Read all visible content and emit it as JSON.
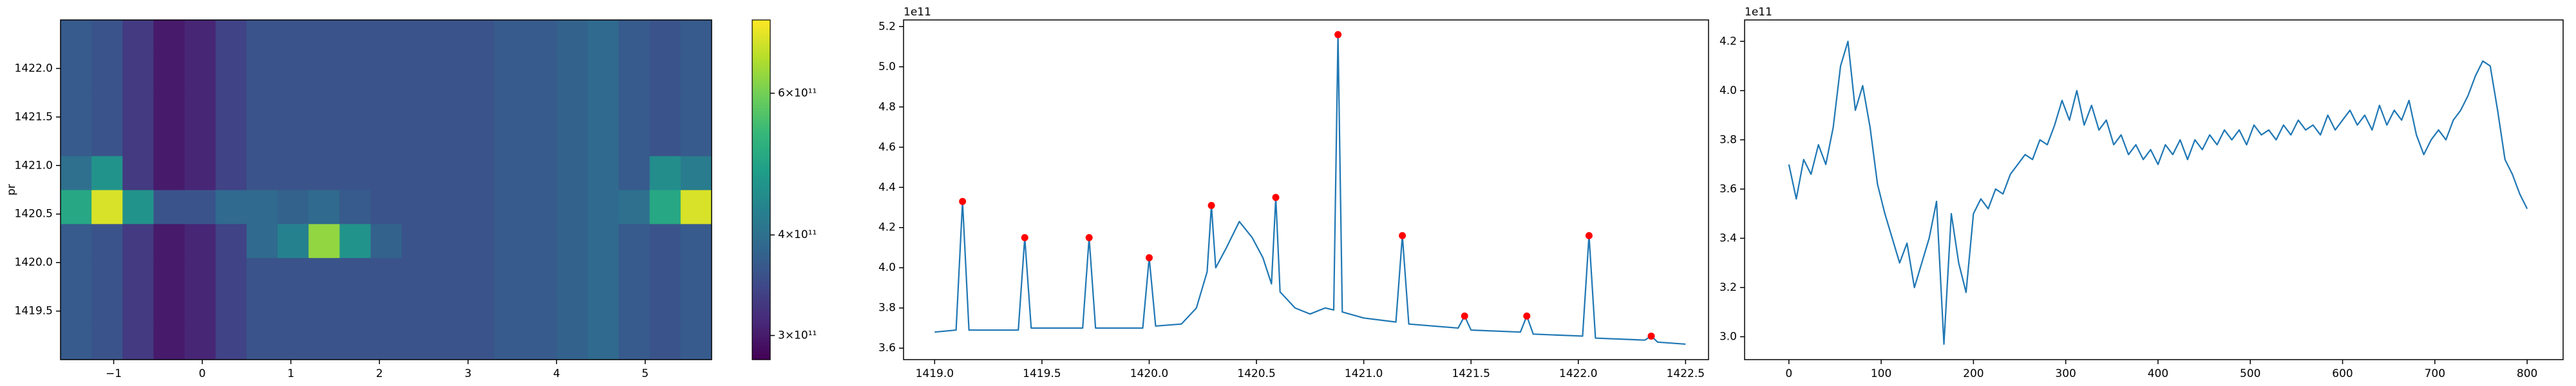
{
  "chart_data": [
    {
      "type": "heatmap",
      "y_label": "pr",
      "x_edges": [
        -1.6,
        -1.25,
        -0.9,
        -0.55,
        -0.2,
        0.15,
        0.5,
        0.85,
        1.2,
        1.55,
        1.9,
        2.25,
        2.6,
        2.95,
        3.3,
        3.65,
        4.0,
        4.35,
        4.7,
        5.05,
        5.4,
        5.75
      ],
      "y_edges": [
        1419.0,
        1419.35,
        1419.7,
        1420.05,
        1420.4,
        1420.75,
        1421.1,
        1421.45,
        1421.8,
        1422.15,
        1422.5
      ],
      "z": [
        [
          370000000000.0,
          360000000000.0,
          330000000000.0,
          300000000000.0,
          310000000000.0,
          340000000000.0,
          360000000000.0,
          360000000000.0,
          360000000000.0,
          360000000000.0,
          360000000000.0,
          360000000000.0,
          360000000000.0,
          360000000000.0,
          370000000000.0,
          370000000000.0,
          380000000000.0,
          390000000000.0,
          370000000000.0,
          360000000000.0,
          370000000000.0
        ],
        [
          370000000000.0,
          360000000000.0,
          330000000000.0,
          300000000000.0,
          310000000000.0,
          340000000000.0,
          360000000000.0,
          360000000000.0,
          360000000000.0,
          360000000000.0,
          360000000000.0,
          360000000000.0,
          360000000000.0,
          360000000000.0,
          370000000000.0,
          370000000000.0,
          380000000000.0,
          390000000000.0,
          370000000000.0,
          360000000000.0,
          370000000000.0
        ],
        [
          370000000000.0,
          360000000000.0,
          330000000000.0,
          300000000000.0,
          310000000000.0,
          340000000000.0,
          360000000000.0,
          360000000000.0,
          360000000000.0,
          360000000000.0,
          360000000000.0,
          360000000000.0,
          360000000000.0,
          360000000000.0,
          370000000000.0,
          370000000000.0,
          380000000000.0,
          390000000000.0,
          370000000000.0,
          360000000000.0,
          370000000000.0
        ],
        [
          370000000000.0,
          360000000000.0,
          330000000000.0,
          300000000000.0,
          310000000000.0,
          340000000000.0,
          390000000000.0,
          430000000000.0,
          630000000000.0,
          460000000000.0,
          380000000000.0,
          360000000000.0,
          360000000000.0,
          360000000000.0,
          370000000000.0,
          370000000000.0,
          380000000000.0,
          390000000000.0,
          370000000000.0,
          360000000000.0,
          370000000000.0
        ],
        [
          500000000000.0,
          700000000000.0,
          460000000000.0,
          360000000000.0,
          360000000000.0,
          390000000000.0,
          390000000000.0,
          380000000000.0,
          390000000000.0,
          370000000000.0,
          360000000000.0,
          360000000000.0,
          360000000000.0,
          360000000000.0,
          370000000000.0,
          370000000000.0,
          380000000000.0,
          390000000000.0,
          400000000000.0,
          500000000000.0,
          700000000000.0
        ],
        [
          400000000000.0,
          460000000000.0,
          330000000000.0,
          300000000000.0,
          310000000000.0,
          340000000000.0,
          360000000000.0,
          360000000000.0,
          360000000000.0,
          360000000000.0,
          360000000000.0,
          360000000000.0,
          360000000000.0,
          360000000000.0,
          370000000000.0,
          370000000000.0,
          380000000000.0,
          390000000000.0,
          370000000000.0,
          450000000000.0,
          420000000000.0
        ],
        [
          370000000000.0,
          360000000000.0,
          330000000000.0,
          300000000000.0,
          310000000000.0,
          340000000000.0,
          360000000000.0,
          360000000000.0,
          360000000000.0,
          360000000000.0,
          360000000000.0,
          360000000000.0,
          360000000000.0,
          360000000000.0,
          370000000000.0,
          370000000000.0,
          380000000000.0,
          390000000000.0,
          370000000000.0,
          360000000000.0,
          370000000000.0
        ],
        [
          370000000000.0,
          360000000000.0,
          330000000000.0,
          300000000000.0,
          310000000000.0,
          340000000000.0,
          360000000000.0,
          360000000000.0,
          360000000000.0,
          360000000000.0,
          360000000000.0,
          360000000000.0,
          360000000000.0,
          360000000000.0,
          370000000000.0,
          370000000000.0,
          380000000000.0,
          390000000000.0,
          370000000000.0,
          360000000000.0,
          370000000000.0
        ],
        [
          370000000000.0,
          360000000000.0,
          330000000000.0,
          300000000000.0,
          310000000000.0,
          340000000000.0,
          360000000000.0,
          360000000000.0,
          360000000000.0,
          360000000000.0,
          360000000000.0,
          360000000000.0,
          360000000000.0,
          360000000000.0,
          370000000000.0,
          370000000000.0,
          380000000000.0,
          390000000000.0,
          370000000000.0,
          360000000000.0,
          370000000000.0
        ],
        [
          370000000000.0,
          360000000000.0,
          330000000000.0,
          300000000000.0,
          310000000000.0,
          340000000000.0,
          360000000000.0,
          360000000000.0,
          360000000000.0,
          360000000000.0,
          360000000000.0,
          360000000000.0,
          360000000000.0,
          360000000000.0,
          370000000000.0,
          370000000000.0,
          380000000000.0,
          390000000000.0,
          370000000000.0,
          360000000000.0,
          370000000000.0
        ]
      ],
      "xlim": [
        -1.6,
        5.75
      ],
      "ylim": [
        1419.0,
        1422.5
      ],
      "xticks": [
        {
          "value": -1,
          "label": "−1"
        },
        0,
        1,
        2,
        3,
        4,
        5
      ],
      "yticks": [
        1419.5,
        {
          "value": 1420,
          "label": "1420.0"
        },
        1420.5,
        {
          "value": 1421,
          "label": "1421.0"
        },
        1421.5,
        {
          "value": 1422,
          "label": "1422.0"
        }
      ],
      "colorbar": {
        "colormap": "viridis",
        "log": true,
        "lim": [
          280000000000.0,
          740000000000.0
        ],
        "ticks": [
          {
            "value": 300000000000.0,
            "label": "3×10¹¹"
          },
          {
            "value": 400000000000.0,
            "label": "4×10¹¹"
          },
          {
            "value": 600000000000.0,
            "label": "6×10¹¹"
          }
        ]
      }
    },
    {
      "type": "line",
      "offset_label": "1e11",
      "xlim": [
        1418.855,
        1422.607
      ],
      "ylim": [
        3.543,
        5.233
      ],
      "xticks": [
        {
          "value": 1419,
          "label": "1419.0"
        },
        1419.5,
        {
          "value": 1420,
          "label": "1420.0"
        },
        1420.5,
        {
          "value": 1421,
          "label": "1421.0"
        },
        1421.5,
        {
          "value": 1422,
          "label": "1422.0"
        },
        1422.5
      ],
      "yticks": [
        3.6,
        3.8,
        {
          "value": 4,
          "label": "4.0"
        },
        4.2,
        4.4,
        4.6,
        4.8,
        {
          "value": 5,
          "label": "5.0"
        },
        5.2
      ],
      "series": [
        {
          "style": "line",
          "color": "#1f77b4",
          "x": [
            1419.0,
            1419.1,
            1419.13,
            1419.16,
            1419.39,
            1419.42,
            1419.45,
            1419.69,
            1419.72,
            1419.75,
            1419.97,
            1420.0,
            1420.03,
            1420.15,
            1420.22,
            1420.27,
            1420.29,
            1420.31,
            1420.36,
            1420.42,
            1420.48,
            1420.53,
            1420.57,
            1420.59,
            1420.61,
            1420.68,
            1420.75,
            1420.82,
            1420.86,
            1420.88,
            1420.9,
            1421.0,
            1421.15,
            1421.18,
            1421.21,
            1421.44,
            1421.47,
            1421.5,
            1421.73,
            1421.76,
            1421.79,
            1422.02,
            1422.05,
            1422.08,
            1422.31,
            1422.34,
            1422.37,
            1422.5
          ],
          "values": [
            3.68,
            3.69,
            4.33,
            3.69,
            3.69,
            4.15,
            3.7,
            3.7,
            4.15,
            3.7,
            3.7,
            4.05,
            3.71,
            3.72,
            3.8,
            3.98,
            4.31,
            4.0,
            4.1,
            4.23,
            4.15,
            4.05,
            3.92,
            4.35,
            3.88,
            3.8,
            3.77,
            3.8,
            3.79,
            5.16,
            3.78,
            3.75,
            3.73,
            4.16,
            3.72,
            3.7,
            3.76,
            3.69,
            3.68,
            3.76,
            3.67,
            3.66,
            4.16,
            3.65,
            3.64,
            3.66,
            3.63,
            3.62
          ]
        },
        {
          "style": "markers",
          "color": "#ff0000",
          "x": [
            1419.13,
            1419.42,
            1419.72,
            1420.0,
            1420.29,
            1420.59,
            1420.88,
            1421.18,
            1421.47,
            1421.76,
            1422.05,
            1422.34
          ],
          "values": [
            4.33,
            4.15,
            4.15,
            4.05,
            4.31,
            4.35,
            5.16,
            4.16,
            3.76,
            3.76,
            4.16,
            3.66
          ]
        }
      ]
    },
    {
      "type": "line",
      "offset_label": "1e11",
      "xlim": [
        -48,
        839
      ],
      "ylim": [
        2.907,
        4.287
      ],
      "xticks": [
        0,
        100,
        200,
        300,
        400,
        500,
        600,
        700,
        800
      ],
      "yticks": [
        {
          "value": 3,
          "label": "3.0"
        },
        3.2,
        3.4,
        3.6,
        3.8,
        {
          "value": 4,
          "label": "4.0"
        },
        4.2
      ],
      "series": [
        {
          "style": "line",
          "color": "#1f77b4",
          "x": [
            0,
            8,
            16,
            24,
            32,
            40,
            48,
            56,
            64,
            72,
            80,
            88,
            96,
            104,
            112,
            120,
            128,
            136,
            144,
            152,
            160,
            168,
            176,
            184,
            192,
            200,
            208,
            216,
            224,
            232,
            240,
            248,
            256,
            264,
            272,
            280,
            288,
            296,
            304,
            312,
            320,
            328,
            336,
            344,
            352,
            360,
            368,
            376,
            384,
            392,
            400,
            408,
            416,
            424,
            432,
            440,
            448,
            456,
            464,
            472,
            480,
            488,
            496,
            504,
            512,
            520,
            528,
            536,
            544,
            552,
            560,
            568,
            576,
            584,
            592,
            600,
            608,
            616,
            624,
            632,
            640,
            648,
            656,
            664,
            672,
            680,
            688,
            696,
            704,
            712,
            720,
            728,
            736,
            744,
            752,
            760,
            768,
            776,
            784,
            792,
            800
          ],
          "values": [
            3.7,
            3.56,
            3.72,
            3.66,
            3.78,
            3.7,
            3.85,
            4.1,
            4.2,
            3.92,
            4.02,
            3.85,
            3.62,
            3.5,
            3.4,
            3.3,
            3.38,
            3.2,
            3.3,
            3.4,
            3.55,
            2.97,
            3.5,
            3.3,
            3.18,
            3.5,
            3.56,
            3.52,
            3.6,
            3.58,
            3.66,
            3.7,
            3.74,
            3.72,
            3.8,
            3.78,
            3.86,
            3.96,
            3.88,
            4.0,
            3.86,
            3.94,
            3.84,
            3.88,
            3.78,
            3.82,
            3.74,
            3.78,
            3.72,
            3.76,
            3.7,
            3.78,
            3.74,
            3.8,
            3.72,
            3.8,
            3.76,
            3.82,
            3.78,
            3.84,
            3.8,
            3.84,
            3.78,
            3.86,
            3.82,
            3.84,
            3.8,
            3.86,
            3.82,
            3.88,
            3.84,
            3.86,
            3.82,
            3.9,
            3.84,
            3.88,
            3.92,
            3.86,
            3.9,
            3.84,
            3.94,
            3.86,
            3.92,
            3.88,
            3.96,
            3.82,
            3.74,
            3.8,
            3.84,
            3.8,
            3.88,
            3.92,
            3.98,
            4.06,
            4.12,
            4.1,
            3.92,
            3.72,
            3.66,
            3.58,
            3.52
          ]
        }
      ]
    }
  ]
}
